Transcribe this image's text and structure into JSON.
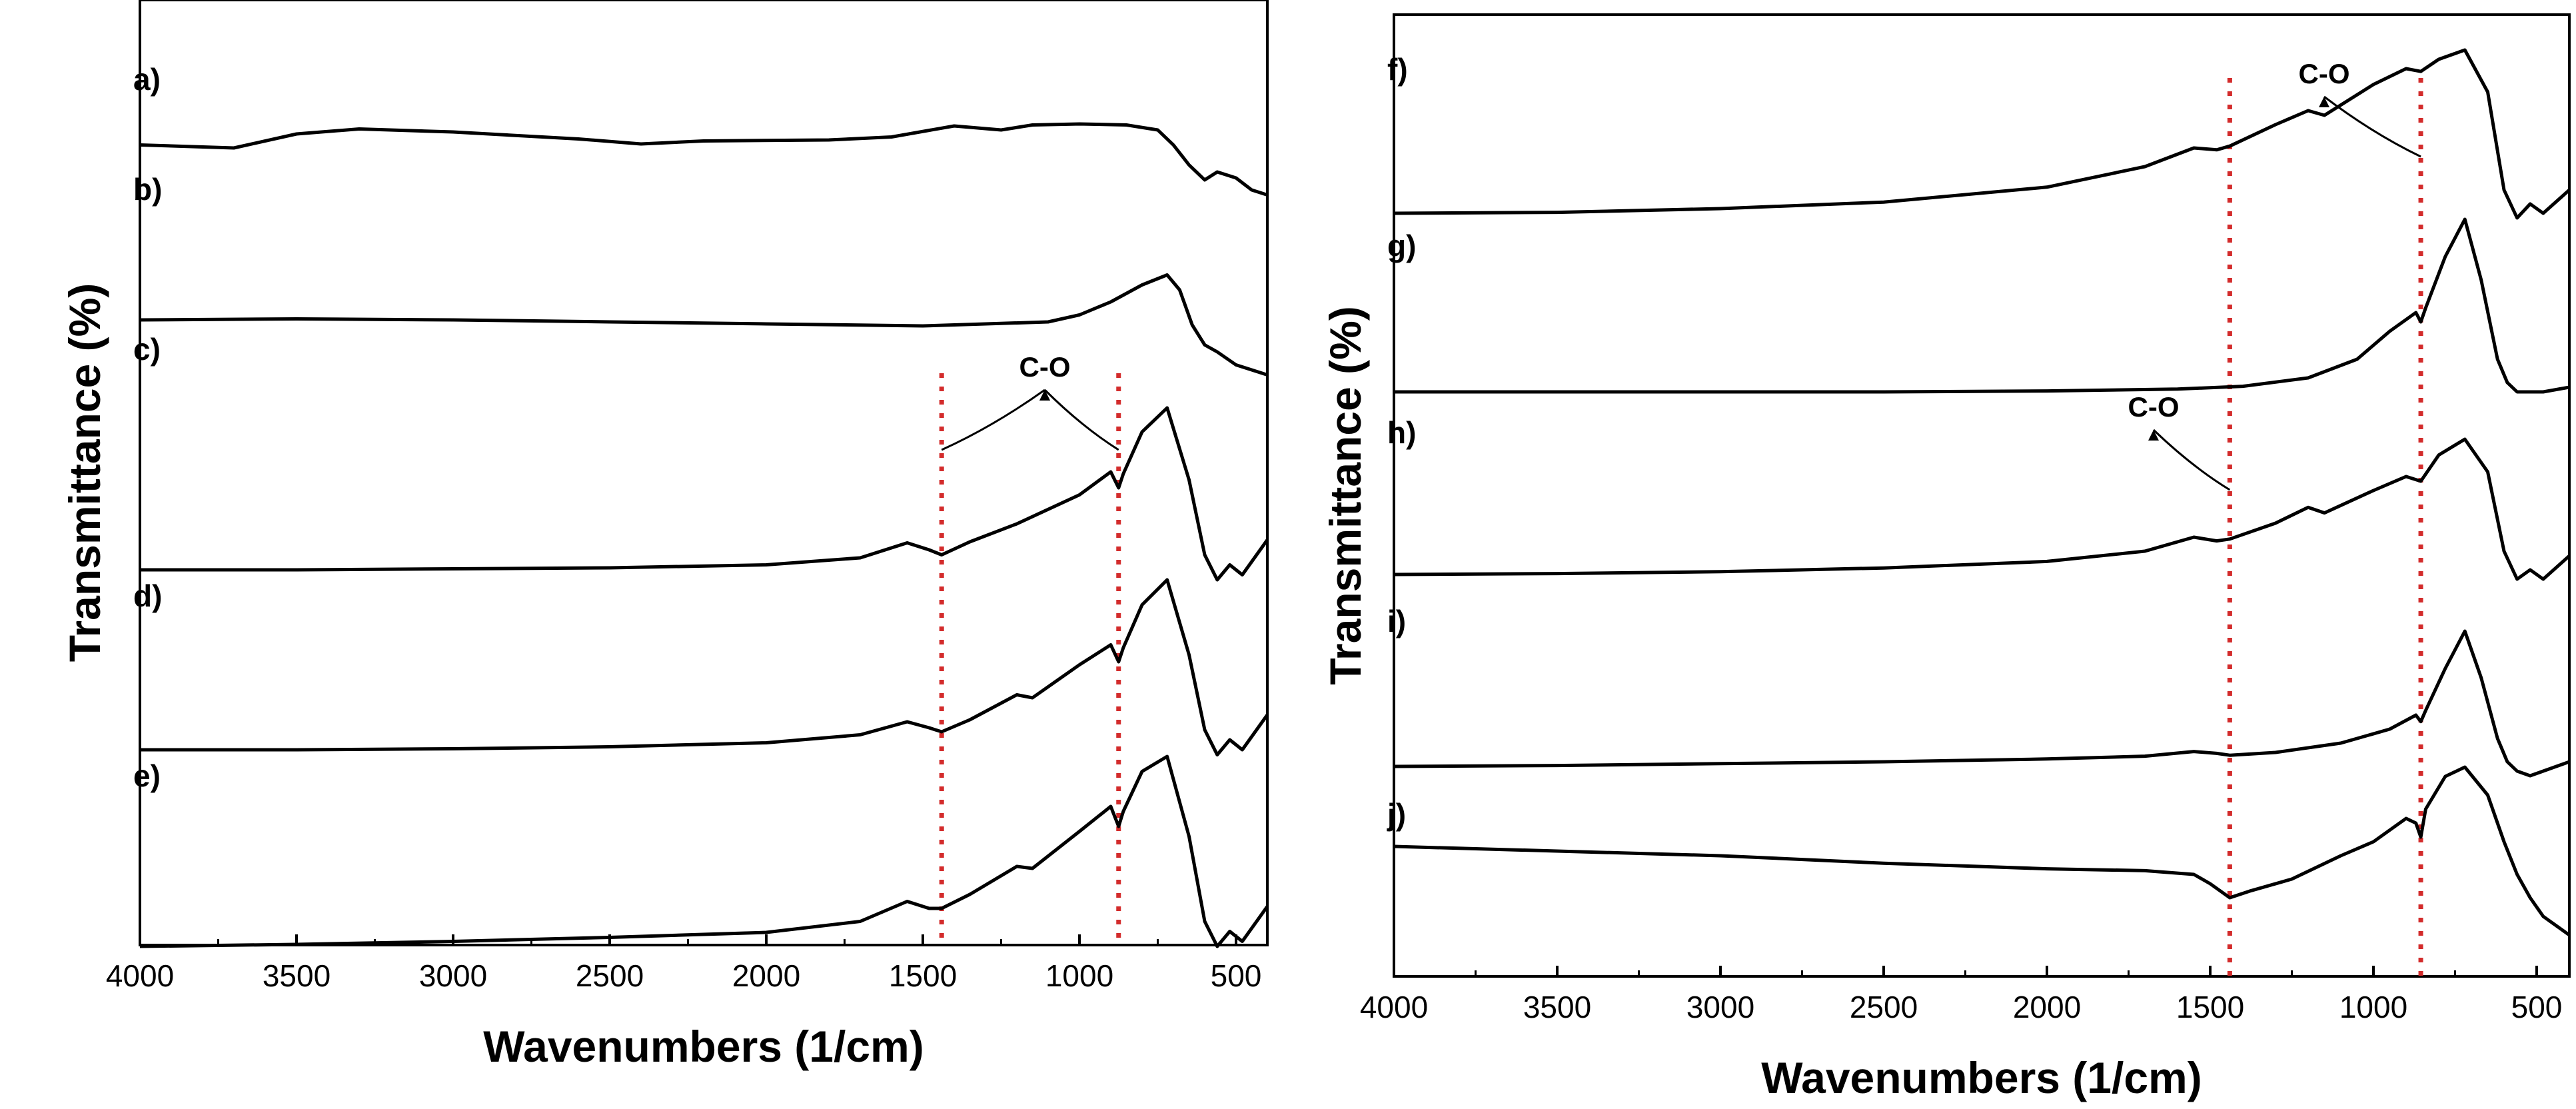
{
  "chart_data": [
    {
      "type": "line",
      "title": "",
      "xlabel": "Wavenumbers (1/cm)",
      "ylabel": "Transmittance (%)",
      "xlim": [
        4000,
        400
      ],
      "xticks": [
        4000,
        3500,
        3000,
        2500,
        2000,
        1500,
        1000,
        500
      ],
      "yticks_shown": false,
      "grid": false,
      "guides": [
        1440,
        875
      ],
      "annotations": [
        {
          "text": "C-O",
          "arrows_to": [
            1440,
            875
          ]
        }
      ],
      "series": [
        {
          "name": "a)",
          "x": [
            4000,
            3700,
            3500,
            3300,
            3000,
            2600,
            2400,
            2200,
            1800,
            1600,
            1400,
            1250,
            1150,
            1000,
            850,
            750,
            700,
            650,
            600,
            560,
            500,
            450,
            400
          ],
          "y": [
            0.05,
            0.02,
            0.16,
            0.21,
            0.18,
            0.11,
            0.06,
            0.09,
            0.1,
            0.13,
            0.24,
            0.2,
            0.25,
            0.26,
            0.25,
            0.2,
            0.05,
            -0.15,
            -0.3,
            -0.22,
            -0.28,
            -0.4,
            -0.45
          ]
        },
        {
          "name": "b)",
          "x": [
            4000,
            3500,
            3000,
            2500,
            2000,
            1500,
            1300,
            1100,
            1000,
            900,
            800,
            720,
            680,
            640,
            600,
            560,
            500,
            450,
            400
          ],
          "y": [
            0.0,
            0.01,
            0.0,
            -0.02,
            -0.04,
            -0.06,
            -0.04,
            -0.02,
            0.05,
            0.18,
            0.35,
            0.45,
            0.3,
            -0.05,
            -0.25,
            -0.32,
            -0.45,
            -0.5,
            -0.55
          ]
        },
        {
          "name": "c)",
          "x": [
            4000,
            3500,
            3000,
            2500,
            2000,
            1700,
            1550,
            1480,
            1440,
            1350,
            1200,
            1000,
            900,
            875,
            860,
            800,
            720,
            650,
            600,
            560,
            520,
            480,
            400
          ],
          "y": [
            0.0,
            0.0,
            0.01,
            0.02,
            0.05,
            0.12,
            0.27,
            0.2,
            0.15,
            0.28,
            0.46,
            0.75,
            0.98,
            0.82,
            0.96,
            1.38,
            1.62,
            0.9,
            0.15,
            -0.1,
            0.05,
            -0.05,
            0.3
          ]
        },
        {
          "name": "d)",
          "x": [
            4000,
            3500,
            3000,
            2500,
            2000,
            1700,
            1550,
            1480,
            1440,
            1350,
            1200,
            1150,
            1000,
            900,
            875,
            860,
            800,
            720,
            650,
            600,
            560,
            520,
            480,
            400
          ],
          "y": [
            0.0,
            0.0,
            0.01,
            0.03,
            0.07,
            0.15,
            0.28,
            0.22,
            0.18,
            0.3,
            0.55,
            0.52,
            0.85,
            1.05,
            0.88,
            1.02,
            1.45,
            1.7,
            0.95,
            0.2,
            -0.05,
            0.1,
            0.0,
            0.35
          ]
        },
        {
          "name": "e)",
          "x": [
            4000,
            3500,
            3000,
            2500,
            2000,
            1700,
            1550,
            1480,
            1440,
            1350,
            1200,
            1150,
            1000,
            900,
            875,
            860,
            800,
            720,
            650,
            600,
            560,
            520,
            480,
            400
          ],
          "y": [
            0.0,
            0.02,
            0.05,
            0.09,
            0.14,
            0.25,
            0.45,
            0.38,
            0.38,
            0.52,
            0.8,
            0.78,
            1.15,
            1.4,
            1.2,
            1.35,
            1.75,
            1.9,
            1.1,
            0.25,
            0.0,
            0.15,
            0.05,
            0.4
          ]
        }
      ]
    },
    {
      "type": "line",
      "title": "",
      "xlabel": "Wavenumbers (1/cm)",
      "ylabel": "Transmittance (%)",
      "xlim": [
        4000,
        400
      ],
      "xticks": [
        4000,
        3500,
        3000,
        2500,
        2000,
        1500,
        1000,
        500
      ],
      "yticks_shown": false,
      "grid": false,
      "guides": [
        1440,
        855
      ],
      "annotations": [
        {
          "text": "C-O",
          "arrows_to": [
            855
          ]
        },
        {
          "text": "C-O",
          "arrows_to": [
            1440
          ]
        }
      ],
      "series": [
        {
          "name": "f)",
          "x": [
            4000,
            3500,
            3000,
            2500,
            2000,
            1700,
            1550,
            1480,
            1440,
            1300,
            1200,
            1150,
            1000,
            900,
            855,
            800,
            720,
            650,
            600,
            560,
            520,
            480,
            400
          ],
          "y": [
            0.0,
            0.01,
            0.05,
            0.12,
            0.28,
            0.5,
            0.7,
            0.68,
            0.72,
            0.95,
            1.1,
            1.05,
            1.38,
            1.55,
            1.52,
            1.65,
            1.75,
            1.3,
            0.25,
            -0.05,
            0.1,
            0.0,
            0.25
          ]
        },
        {
          "name": "g)",
          "x": [
            4000,
            3500,
            3000,
            2500,
            2000,
            1600,
            1400,
            1200,
            1050,
            950,
            870,
            855,
            840,
            780,
            720,
            670,
            620,
            590,
            560,
            520,
            480,
            400
          ],
          "y": [
            0.0,
            0.0,
            0.0,
            0.0,
            0.01,
            0.03,
            0.06,
            0.15,
            0.35,
            0.65,
            0.85,
            0.75,
            0.9,
            1.45,
            1.85,
            1.2,
            0.35,
            0.1,
            0.0,
            0.0,
            0.0,
            0.05
          ]
        },
        {
          "name": "h)",
          "x": [
            4000,
            3500,
            3000,
            2500,
            2000,
            1700,
            1550,
            1480,
            1440,
            1300,
            1200,
            1150,
            1000,
            900,
            855,
            800,
            720,
            650,
            600,
            560,
            520,
            480,
            400
          ],
          "y": [
            0.0,
            0.01,
            0.03,
            0.07,
            0.14,
            0.25,
            0.4,
            0.36,
            0.38,
            0.55,
            0.72,
            0.66,
            0.9,
            1.05,
            1.0,
            1.28,
            1.45,
            1.1,
            0.25,
            -0.05,
            0.05,
            -0.05,
            0.2
          ]
        },
        {
          "name": "i)",
          "x": [
            4000,
            3500,
            3000,
            2500,
            2000,
            1700,
            1550,
            1480,
            1440,
            1300,
            1100,
            950,
            870,
            855,
            840,
            780,
            720,
            670,
            620,
            590,
            560,
            520,
            480,
            400
          ],
          "y": [
            0.0,
            0.01,
            0.03,
            0.05,
            0.08,
            0.11,
            0.16,
            0.14,
            0.12,
            0.15,
            0.25,
            0.4,
            0.55,
            0.48,
            0.6,
            1.05,
            1.45,
            0.95,
            0.3,
            0.05,
            -0.05,
            -0.1,
            -0.05,
            0.05
          ]
        },
        {
          "name": "j)",
          "x": [
            4000,
            3500,
            3000,
            2500,
            2000,
            1700,
            1550,
            1500,
            1440,
            1380,
            1250,
            1100,
            1000,
            900,
            870,
            855,
            840,
            780,
            720,
            650,
            600,
            560,
            520,
            480,
            400
          ],
          "y": [
            0.0,
            -0.05,
            -0.1,
            -0.18,
            -0.24,
            -0.26,
            -0.3,
            -0.4,
            -0.55,
            -0.48,
            -0.35,
            -0.1,
            0.05,
            0.3,
            0.25,
            0.1,
            0.4,
            0.75,
            0.85,
            0.55,
            0.05,
            -0.3,
            -0.55,
            -0.75,
            -0.95
          ]
        }
      ]
    }
  ]
}
